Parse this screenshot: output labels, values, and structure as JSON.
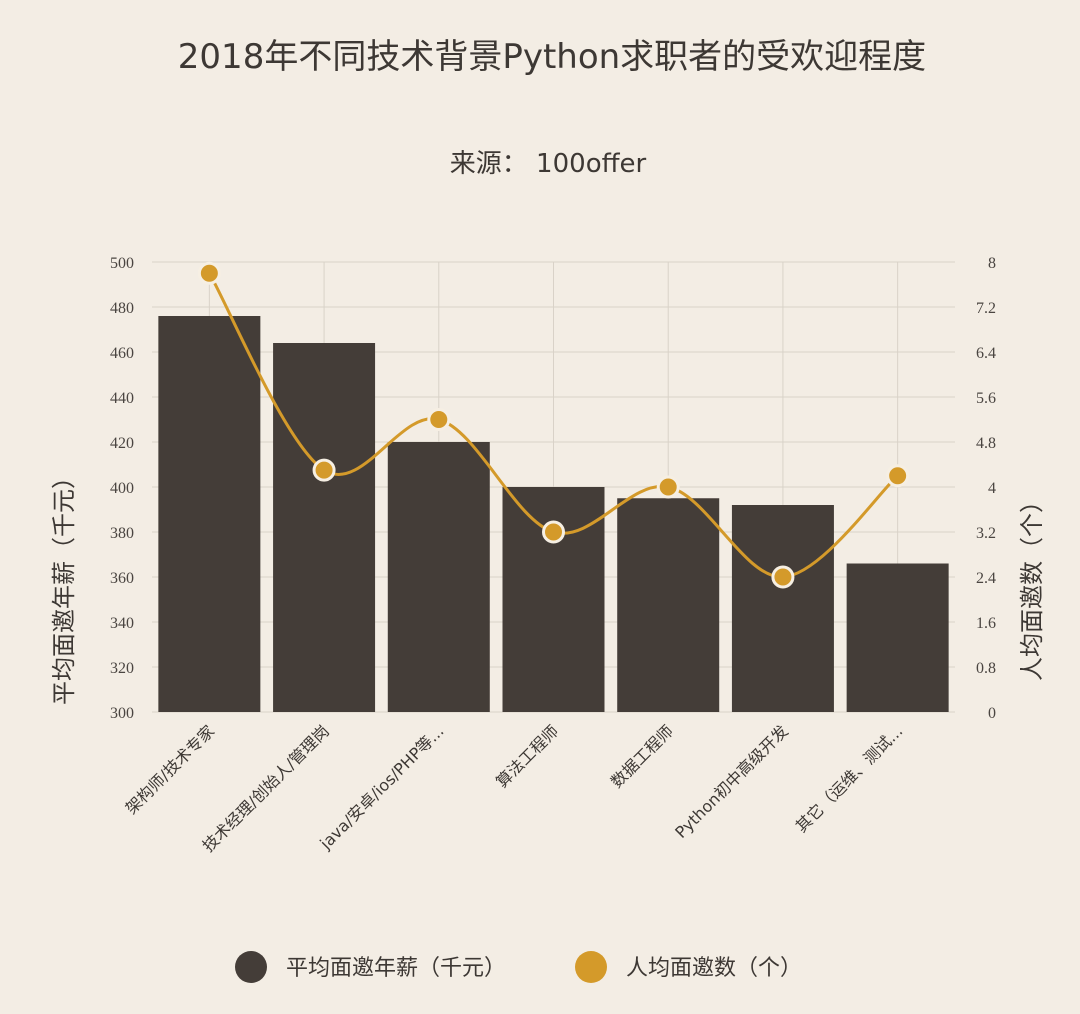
{
  "chart_data": {
    "type": "bar",
    "title": "2018年不同技术背景Python求职者的受欢迎程度",
    "subtitle": "来源：  100offer",
    "categories": [
      "架构师/技术专家",
      "技术经理/创始人/管理岗",
      "java/安卓/ios/PHP等...",
      "算法工程师",
      "数据工程师",
      "Python初中高级开发",
      "其它（运维、测试..."
    ],
    "series": [
      {
        "name": "平均面邀年薪（千元）",
        "type": "bar",
        "axis": "left",
        "color": "#443d38",
        "values": [
          476,
          464,
          420,
          400,
          395,
          392,
          366
        ]
      },
      {
        "name": "人均面邀数（个）",
        "type": "line",
        "axis": "right",
        "color": "#d49a2a",
        "values": [
          7.8,
          4.3,
          5.2,
          3.2,
          4.0,
          2.4,
          4.2
        ]
      }
    ],
    "ylabel": "平均面邀年薪（千元）",
    "y2label": "人均面邀数（个）",
    "ylim": [
      300,
      500
    ],
    "y2lim": [
      0,
      8
    ],
    "yticks": [
      "300",
      "320",
      "340",
      "360",
      "380",
      "400",
      "420",
      "440",
      "460",
      "480",
      "500"
    ],
    "y2ticks": [
      "0",
      "0.8",
      "1.6",
      "2.4",
      "3.2",
      "4",
      "4.8",
      "5.6",
      "6.4",
      "7.2",
      "8"
    ],
    "grid": true,
    "legend_position": "bottom"
  }
}
